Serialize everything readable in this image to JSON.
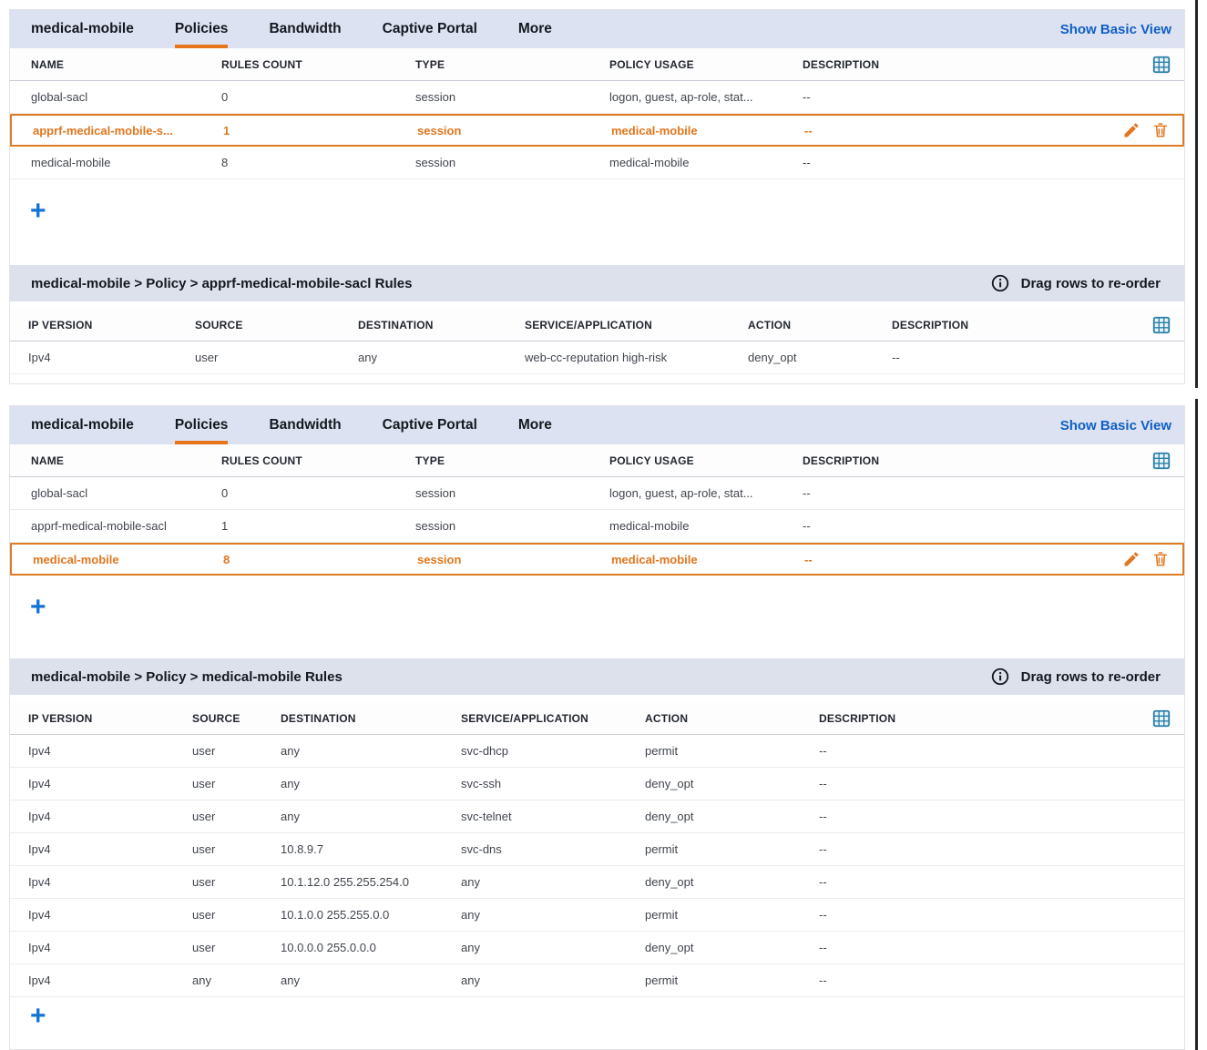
{
  "tabs": {
    "role": "medical-mobile",
    "policies": "Policies",
    "bandwidth": "Bandwidth",
    "captive_portal": "Captive Portal",
    "more": "More",
    "show_basic_view": "Show Basic View"
  },
  "drag_hint": "Drag rows to re-order",
  "add_label": "+",
  "icons": {
    "grid": "grid-icon",
    "edit": "pencil-icon",
    "delete": "trash-icon",
    "info": "info-icon",
    "add": "plus-icon"
  },
  "colors": {
    "accent_orange": "#E0761E",
    "tab_underline_orange": "#E8751C",
    "link_blue": "#0F5FC4",
    "plus_blue": "#1273D4",
    "grid_icon_teal": "#2980A8",
    "tabbar_bg": "#DCE2F1",
    "breadcrumb_bg": "#DDE1EC"
  },
  "panel1": {
    "policies": {
      "headers": [
        "NAME",
        "RULES COUNT",
        "TYPE",
        "POLICY USAGE",
        "DESCRIPTION"
      ],
      "rows": [
        [
          "global-sacl",
          "0",
          "session",
          "logon, guest, ap-role, stat...",
          "--"
        ],
        [
          "apprf-medical-mobile-s...",
          "1",
          "session",
          "medical-mobile",
          "--"
        ],
        [
          "medical-mobile",
          "8",
          "session",
          "medical-mobile",
          "--"
        ]
      ],
      "selected": 1
    },
    "breadcrumb": "medical-mobile > Policy > apprf-medical-mobile-sacl Rules",
    "rules": {
      "headers": [
        "IP VERSION",
        "SOURCE",
        "DESTINATION",
        "SERVICE/APPLICATION",
        "ACTION",
        "DESCRIPTION"
      ],
      "rows": [
        [
          "Ipv4",
          "user",
          "any",
          "web-cc-reputation high-risk",
          "deny_opt",
          "--"
        ]
      ],
      "selected": -1
    }
  },
  "panel2": {
    "policies": {
      "headers": [
        "NAME",
        "RULES COUNT",
        "TYPE",
        "POLICY USAGE",
        "DESCRIPTION"
      ],
      "rows": [
        [
          "global-sacl",
          "0",
          "session",
          "logon, guest, ap-role, stat...",
          "--"
        ],
        [
          "apprf-medical-mobile-sacl",
          "1",
          "session",
          "medical-mobile",
          "--"
        ],
        [
          "medical-mobile",
          "8",
          "session",
          "medical-mobile",
          "--"
        ]
      ],
      "selected": 2
    },
    "breadcrumb": "medical-mobile > Policy > medical-mobile Rules",
    "rules": {
      "headers": [
        "IP VERSION",
        "SOURCE",
        "DESTINATION",
        "SERVICE/APPLICATION",
        "ACTION",
        "DESCRIPTION"
      ],
      "rows": [
        [
          "Ipv4",
          "user",
          "any",
          "svc-dhcp",
          "permit",
          "--"
        ],
        [
          "Ipv4",
          "user",
          "any",
          "svc-ssh",
          "deny_opt",
          "--"
        ],
        [
          "Ipv4",
          "user",
          "any",
          "svc-telnet",
          "deny_opt",
          "--"
        ],
        [
          "Ipv4",
          "user",
          "10.8.9.7",
          "svc-dns",
          "permit",
          "--"
        ],
        [
          "Ipv4",
          "user",
          "10.1.12.0 255.255.254.0",
          "any",
          "deny_opt",
          "--"
        ],
        [
          "Ipv4",
          "user",
          "10.1.0.0 255.255.0.0",
          "any",
          "permit",
          "--"
        ],
        [
          "Ipv4",
          "user",
          "10.0.0.0 255.0.0.0",
          "any",
          "deny_opt",
          "--"
        ],
        [
          "Ipv4",
          "any",
          "any",
          "any",
          "permit",
          "--"
        ]
      ],
      "selected": -1
    }
  }
}
